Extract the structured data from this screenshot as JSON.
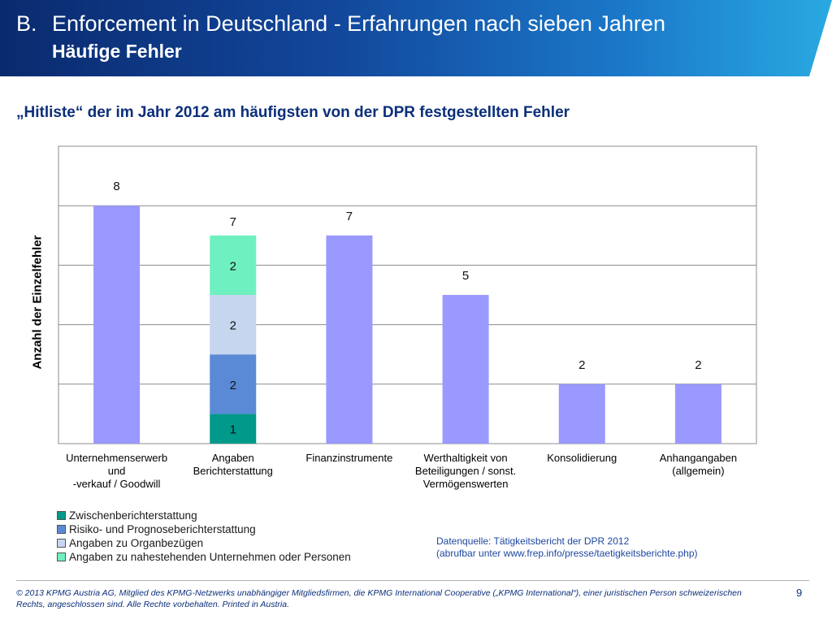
{
  "header": {
    "section_number": "B.",
    "title": "Enforcement in Deutschland - Erfahrungen nach sieben Jahren",
    "subtitle": "Häufige Fehler"
  },
  "slide_subtitle": "„Hitliste“ der im Jahr 2012 am häufigsten von der DPR festgestellten Fehler",
  "chart_data": {
    "type": "bar",
    "title": "„Hitliste“ der im Jahr 2012 am häufigsten von der DPR festgestellten Fehler",
    "ylabel": "Anzahl der Einzelfehler",
    "xlabel": "",
    "ylim": [
      0,
      10
    ],
    "grid": true,
    "categories": [
      [
        "Unternehmenserwerb",
        "und",
        "-verkauf / Goodwill"
      ],
      [
        "Angaben",
        "Berichterstattung"
      ],
      [
        "Finanzinstrumente"
      ],
      [
        "Werthaltigkeit von",
        "Beteiligungen / sonst.",
        "Vermögenswerten"
      ],
      [
        "Konsolidierung"
      ],
      [
        "Anhangangaben",
        "(allgemein)"
      ]
    ],
    "values": [
      8,
      7,
      7,
      5,
      2,
      2
    ],
    "bar_color": "#9999ff",
    "stacked_index": 1,
    "stack": [
      {
        "name": "Zwischenberichterstattung",
        "value": 1,
        "color": "#00998a"
      },
      {
        "name": "Risiko- und Prognoseberichterstattung",
        "value": 2,
        "color": "#5a8ad6"
      },
      {
        "name": "Angaben zu Organbezügen",
        "value": 2,
        "color": "#c6d6ef"
      },
      {
        "name": "Angaben zu nahestehenden Unternehmen oder Personen",
        "value": 2,
        "color": "#6ff0c0"
      }
    ],
    "legend": [
      {
        "label": "Zwischenberichterstattung",
        "color": "#00998a"
      },
      {
        "label": "Risiko- und Prognoseberichterstattung",
        "color": "#5a8ad6"
      },
      {
        "label": "Angaben zu Organbezügen",
        "color": "#c6d6ef"
      },
      {
        "label": "Angaben zu nahestehenden Unternehmen oder Personen",
        "color": "#6ff0c0"
      }
    ],
    "legend_position": "bottom-left"
  },
  "source": {
    "line1": "Datenquelle: Tätigkeitsbericht der DPR 2012",
    "line2": "(abrufbar unter www.frep.info/presse/taetigkeitsberichte.php)"
  },
  "footer": {
    "text": "© 2013 KPMG Austria AG, Mitglied des KPMG-Netzwerks unabhängiger Mitgliedsfirmen, die KPMG International Cooperative („KPMG International“), einer juristischen Person schweizerischen Rechts, angeschlossen sind. Alle Rechte vorbehalten. Printed in Austria.",
    "page_number": "9"
  }
}
